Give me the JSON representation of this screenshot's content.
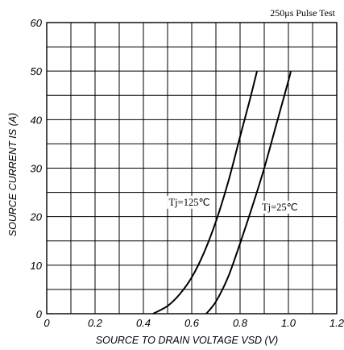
{
  "chart_data": {
    "type": "line",
    "annotation": "250μs Pulse Test",
    "xlabel": "SOURCE TO DRAIN VOLTAGE  VSD (V)",
    "ylabel": "SOURCE CURRENT  IS (A)",
    "xlim": [
      0,
      1.2
    ],
    "ylim": [
      0,
      60
    ],
    "x_ticks": [
      "0",
      "0.2",
      "0.4",
      "0.6",
      "0.8",
      "1.0",
      "1.2"
    ],
    "y_ticks": [
      "0",
      "10",
      "20",
      "30",
      "40",
      "50",
      "60"
    ],
    "x_grid_step": 0.1,
    "y_grid_step": 5,
    "grid": true,
    "series": [
      {
        "name": "Tj=125℃",
        "x": [
          0.44,
          0.5,
          0.55,
          0.6,
          0.65,
          0.7,
          0.75,
          0.8,
          0.84,
          0.87
        ],
        "y": [
          0,
          1.6,
          4,
          7.5,
          12.5,
          19,
          27,
          36.5,
          44,
          50
        ]
      },
      {
        "name": "Tj=25℃",
        "x": [
          0.66,
          0.7,
          0.75,
          0.8,
          0.85,
          0.9,
          0.95,
          1.0,
          1.01
        ],
        "y": [
          0,
          2.5,
          7.5,
          14.5,
          22,
          30,
          39,
          48,
          50
        ]
      }
    ]
  }
}
